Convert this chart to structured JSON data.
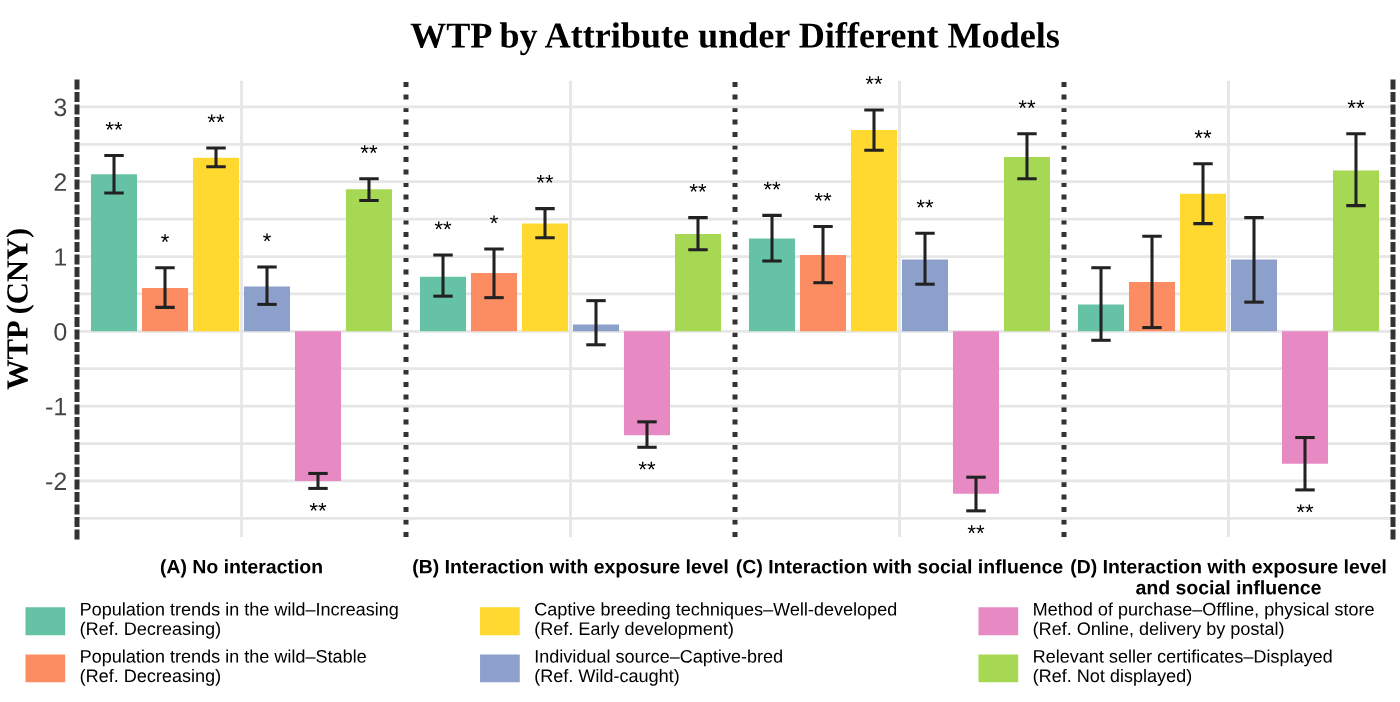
{
  "chart_data": {
    "type": "bar",
    "title": "WTP by Attribute under Different Models",
    "ylabel": "WTP (CNY)",
    "categories": [
      "(A) No interaction",
      "(B) Interaction with exposure level",
      "(C) Interaction with social influence",
      "(D) Interaction with exposure level\nand social influence"
    ],
    "legend": "bottom",
    "grid": true,
    "ylim": [
      -2.75,
      3.35
    ],
    "yticks": [
      {
        "value": -2.5,
        "label": null
      },
      -2,
      {
        "value": -1.5,
        "label": null
      },
      -1,
      {
        "value": -0.5,
        "label": null
      },
      0,
      {
        "value": 0.5,
        "label": null
      },
      1,
      {
        "value": 1.5,
        "label": null
      },
      2,
      {
        "value": 2.5,
        "label": null
      },
      3
    ],
    "series": [
      {
        "name": "Population trends in the wild–Increasing\n(Ref. Decreasing)",
        "color": "#66c2a5",
        "values": [
          2.1,
          0.73,
          1.24,
          0.36
        ],
        "errors": [
          [
            1.85,
            2.35
          ],
          [
            0.47,
            1.02
          ],
          [
            0.94,
            1.55
          ],
          [
            -0.12,
            0.85
          ]
        ],
        "value_labels": [
          "**",
          "**",
          "**",
          null
        ]
      },
      {
        "name": "Population trends in the wild–Stable\n(Ref. Decreasing)",
        "color": "#fc8d62",
        "values": [
          0.58,
          0.78,
          1.02,
          0.66
        ],
        "errors": [
          [
            0.32,
            0.85
          ],
          [
            0.45,
            1.1
          ],
          [
            0.65,
            1.4
          ],
          [
            0.05,
            1.27
          ]
        ],
        "value_labels": [
          "*",
          "*",
          "**",
          null
        ]
      },
      {
        "name": "Captive breeding techniques–Well-developed\n(Ref. Early development)",
        "color": "#ffd92f",
        "values": [
          2.32,
          1.44,
          2.69,
          1.84
        ],
        "errors": [
          [
            2.2,
            2.45
          ],
          [
            1.25,
            1.64
          ],
          [
            2.42,
            2.96
          ],
          [
            1.44,
            2.24
          ]
        ],
        "value_labels": [
          "**",
          "**",
          "**",
          "**"
        ]
      },
      {
        "name": "Individual source–Captive-bred\n(Ref. Wild-caught)",
        "color": "#8da0cb",
        "values": [
          0.6,
          0.09,
          0.96,
          0.96
        ],
        "errors": [
          [
            0.36,
            0.86
          ],
          [
            -0.18,
            0.41
          ],
          [
            0.63,
            1.31
          ],
          [
            0.39,
            1.52
          ]
        ],
        "value_labels": [
          "*",
          null,
          "**",
          null
        ]
      },
      {
        "name": "Method of purchase–Offline, physical store\n(Ref. Online, delivery by postal)",
        "color": "#e78ac3",
        "values": [
          -2.0,
          -1.39,
          -2.17,
          -1.77
        ],
        "errors": [
          [
            -2.1,
            -1.9
          ],
          [
            -1.55,
            -1.21
          ],
          [
            -2.4,
            -1.95
          ],
          [
            -2.12,
            -1.42
          ]
        ],
        "value_labels": [
          "**",
          "**",
          "**",
          "**"
        ]
      },
      {
        "name": "Relevant seller certificates–Displayed\n(Ref. Not displayed)",
        "color": "#a6d854",
        "values": [
          1.9,
          1.3,
          2.33,
          2.15
        ],
        "errors": [
          [
            1.75,
            2.04
          ],
          [
            1.09,
            1.52
          ],
          [
            2.04,
            2.64
          ],
          [
            1.68,
            2.64
          ]
        ],
        "value_labels": [
          "**",
          "**",
          "**",
          "**"
        ]
      }
    ]
  }
}
